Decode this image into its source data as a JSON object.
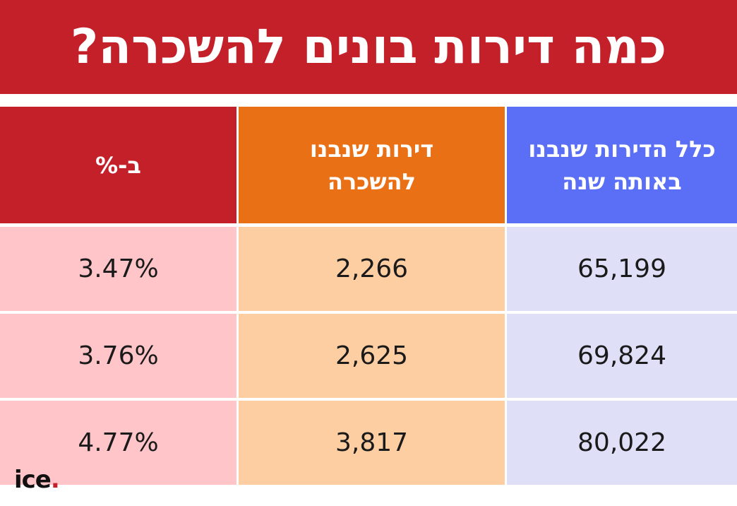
{
  "title": "כמה דירות בונים להשכרה?",
  "colors": {
    "title_bg": "#c4202a",
    "pct_header_bg": "#c4202a",
    "rent_header_bg": "#ea7016",
    "total_header_bg": "#5a6ff5",
    "pct_cell_bg": "#ffc5c8",
    "rent_cell_bg": "#fecea3",
    "total_cell_bg": "#dfe0f8"
  },
  "chart_data": {
    "type": "table",
    "columns": [
      {
        "key": "pct",
        "header": "ב-%",
        "color_key": "pct"
      },
      {
        "key": "rent",
        "header": "דירות שנבנו\nלהשכרה",
        "color_key": "rent"
      },
      {
        "key": "total",
        "header": "כלל הדירות שנבנו\nבאותה שנה",
        "color_key": "total"
      }
    ],
    "rows": [
      {
        "pct": "3.47%",
        "rent": "2,266",
        "total": "65,199"
      },
      {
        "pct": "3.76%",
        "rent": "2,625",
        "total": "69,824"
      },
      {
        "pct": "4.77%",
        "rent": "3,817",
        "total": "80,022"
      }
    ]
  },
  "logo": {
    "text": "ice",
    "dot": "."
  }
}
